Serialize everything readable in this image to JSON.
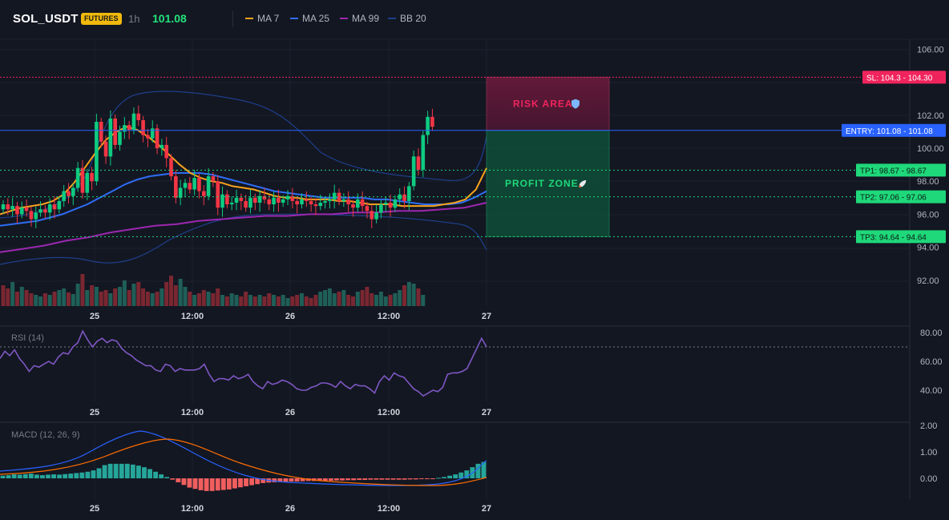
{
  "header": {
    "symbol": "SOL_USDT",
    "badge": "FUTURES",
    "timeframe": "1h",
    "last_price": "101.08"
  },
  "indicators": [
    {
      "label": "MA 7",
      "color": "#f7a21b"
    },
    {
      "label": "MA 25",
      "color": "#2f6df6"
    },
    {
      "label": "MA 99",
      "color": "#9c27b0"
    },
    {
      "label": "BB 20",
      "color": "#1e3f8a"
    }
  ],
  "colors": {
    "background": "#131722",
    "grid": "#1e222d",
    "up": "#26a69a",
    "up_bright": "#0ecb81",
    "down": "#f23645",
    "rsi": "#7e57c2",
    "macd": "#2962ff",
    "signal": "#ff6d00",
    "stop_loss": "#f0245d",
    "entry": "#2962ff",
    "take_profit": "#1fd87a"
  },
  "price_axis": {
    "ticks": [
      "106.00",
      "102.00",
      "100.00",
      "98.00",
      "96.00",
      "94.00",
      "92.00"
    ]
  },
  "time_axis": {
    "labels": [
      "25",
      "12:00",
      "26",
      "12:00",
      "27"
    ]
  },
  "trade": {
    "risk_label": "RISK AREA",
    "risk_icon": "shield-icon",
    "profit_label": "PROFIT ZONE",
    "profit_icon": "rocket-icon",
    "levels": [
      {
        "name": "stop-loss",
        "tag": "SL: 104.3",
        "value": "104.30",
        "price": 104.3
      },
      {
        "name": "entry",
        "tag": "ENTRY: 101.08",
        "value": "101.08",
        "price": 101.08
      },
      {
        "name": "tp1",
        "tag": "TP1: 98.67",
        "value": "98.67",
        "price": 98.67
      },
      {
        "name": "tp2",
        "tag": "TP2: 97.06",
        "value": "97.06",
        "price": 97.06
      },
      {
        "name": "tp3",
        "tag": "TP3: 94.64",
        "value": "94.64",
        "price": 94.64
      }
    ]
  },
  "rsi": {
    "label": "RSI (14)",
    "ticks": [
      "80.00",
      "60.00",
      "40.00"
    ],
    "values": [
      62,
      67,
      64,
      68,
      62,
      58,
      53,
      57,
      56,
      58,
      60,
      58,
      63,
      66,
      65,
      70,
      73,
      81,
      75,
      70,
      74,
      76,
      73,
      75,
      74,
      69,
      66,
      64,
      61,
      59,
      57,
      57,
      54,
      53,
      58,
      57,
      53,
      55,
      54,
      54,
      54,
      55,
      58,
      51,
      46,
      48,
      48,
      47,
      50,
      48,
      49,
      51,
      46,
      43,
      41,
      46,
      44,
      45,
      47,
      46,
      44,
      41,
      40,
      40,
      42,
      43,
      45,
      45,
      44,
      42,
      46,
      43,
      41,
      44,
      43,
      43,
      41,
      38,
      46,
      50,
      47,
      52,
      50,
      49,
      45,
      41,
      39,
      36,
      38,
      40,
      39,
      42,
      51,
      52,
      52,
      53,
      55,
      62,
      69,
      76,
      70
    ]
  },
  "macd": {
    "label": "MACD (12, 26, 9)",
    "ticks": [
      "2.00",
      "1.00",
      "0.00"
    ]
  },
  "chart_data": {
    "type": "candlestick",
    "series": [
      {
        "name": "MA 7",
        "values": [
          96.0,
          96.2,
          96.4,
          96.5,
          96.6,
          96.8,
          97.2,
          97.9,
          98.8,
          99.7,
          100.5,
          101.0,
          101.3,
          101.1,
          100.7,
          100.2,
          99.6,
          99.0,
          98.5,
          98.2,
          98.0,
          97.9,
          97.7,
          97.6,
          97.5,
          97.3,
          97.1,
          97.0,
          97.0,
          96.9,
          96.9,
          96.9,
          96.8,
          96.8,
          96.7,
          96.6,
          96.6,
          96.6,
          96.5,
          96.5,
          96.5,
          96.5,
          96.6,
          96.7,
          96.9,
          97.5,
          98.8
        ]
      },
      {
        "name": "MA 25",
        "values": [
          95.3,
          95.4,
          95.5,
          95.6,
          95.8,
          96.0,
          96.3,
          96.6,
          97.0,
          97.4,
          97.8,
          98.1,
          98.3,
          98.4,
          98.5,
          98.5,
          98.5,
          98.4,
          98.2,
          98.0,
          97.8,
          97.6,
          97.4,
          97.3,
          97.2,
          97.1,
          97.0,
          97.0,
          97.0,
          97.0,
          96.9,
          96.9,
          96.8,
          96.7,
          96.6,
          96.6,
          96.6,
          96.7,
          97.0,
          97.4
        ]
      },
      {
        "name": "MA 99",
        "values": [
          93.7,
          93.9,
          94.1,
          94.4,
          94.6,
          94.9,
          95.1,
          95.3,
          95.4,
          95.6,
          95.7,
          95.8,
          95.9,
          95.9,
          96.0,
          96.0,
          96.1,
          96.1,
          96.2,
          96.2,
          96.3,
          96.4,
          96.7
        ]
      }
    ]
  }
}
